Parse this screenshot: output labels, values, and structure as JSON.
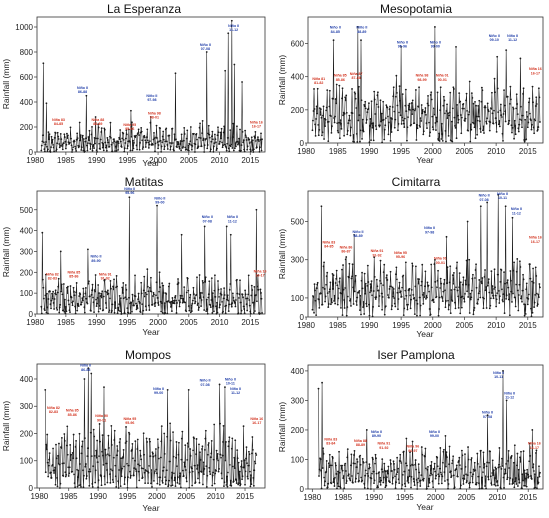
{
  "figure": {
    "background": "#ffffff",
    "line_color": "#1a1a1a",
    "nino_color": "#1f3da8",
    "nina_color": "#d2321e"
  },
  "chart_data": [
    {
      "id": "la-esperanza",
      "type": "line",
      "title": "La Esperanza",
      "xlabel": "Year",
      "ylabel": "Rainfall (mm)",
      "xlim": [
        1980.3,
        2017.4
      ],
      "ylim": [
        0,
        1080
      ],
      "xticks": [
        1980,
        1985,
        1990,
        1995,
        2000,
        2005,
        2010,
        2015
      ],
      "yticks": [
        0,
        200,
        400,
        600,
        800,
        1000
      ],
      "grid": false,
      "legend": "none",
      "base": 75,
      "amp": 145,
      "seed": 11,
      "peaks": [
        {
          "x": 1981.3,
          "y": 710
        },
        {
          "x": 1981.8,
          "y": 390
        },
        {
          "x": 1988.3,
          "y": 450
        },
        {
          "x": 1989.8,
          "y": 280
        },
        {
          "x": 1995.6,
          "y": 330
        },
        {
          "x": 1998.8,
          "y": 280
        },
        {
          "x": 2002.8,
          "y": 630
        },
        {
          "x": 2007.9,
          "y": 800
        },
        {
          "x": 2010.9,
          "y": 650
        },
        {
          "x": 2011.4,
          "y": 950
        },
        {
          "x": 2012.0,
          "y": 1050
        },
        {
          "x": 2012.4,
          "y": 700
        },
        {
          "x": 2013.7,
          "y": 560
        }
      ],
      "annotations": [
        {
          "kind": "nino",
          "x": 1987.7,
          "y": 505,
          "lines": [
            "Niño II",
            "86-88"
          ]
        },
        {
          "kind": "nina",
          "x": 1983.8,
          "y": 250,
          "lines": [
            "Niña 83",
            "84-85"
          ]
        },
        {
          "kind": "nina",
          "x": 1990.2,
          "y": 250,
          "lines": [
            "Niña 88",
            "88-89"
          ]
        },
        {
          "kind": "nina",
          "x": 1995.4,
          "y": 210,
          "lines": [
            "Niña 95",
            "95-96"
          ]
        },
        {
          "kind": "nino",
          "x": 1999.0,
          "y": 440,
          "lines": [
            "Niño II",
            "97-98"
          ]
        },
        {
          "kind": "nina",
          "x": 1999.4,
          "y": 300,
          "lines": [
            "Niña 98",
            "98-01"
          ]
        },
        {
          "kind": "nino",
          "x": 2007.7,
          "y": 850,
          "lines": [
            "Niño II",
            "07-08"
          ]
        },
        {
          "kind": "nino",
          "x": 2012.3,
          "y": 1000,
          "lines": [
            "Niño II",
            "11-12"
          ]
        },
        {
          "kind": "nina",
          "x": 2016.0,
          "y": 230,
          "lines": [
            "Niña 16",
            "16-17"
          ]
        }
      ]
    },
    {
      "id": "mesopotamia",
      "type": "line",
      "title": "Mesopotamia",
      "xlabel": "Year",
      "ylabel": "Rainfall (mm)",
      "xlim": [
        1980.3,
        2017.4
      ],
      "ylim": [
        0,
        760
      ],
      "xticks": [
        1980,
        1985,
        1990,
        1995,
        2000,
        2005,
        2010,
        2015
      ],
      "yticks": [
        0,
        200,
        400,
        600
      ],
      "grid": false,
      "legend": "none",
      "base": 250,
      "amp": 210,
      "seed": 23,
      "peaks": [
        {
          "x": 1984.3,
          "y": 620
        },
        {
          "x": 1988.2,
          "y": 700
        },
        {
          "x": 1988.7,
          "y": 620
        },
        {
          "x": 1995.0,
          "y": 580
        },
        {
          "x": 2000.3,
          "y": 700
        },
        {
          "x": 2003.7,
          "y": 580
        },
        {
          "x": 2010.2,
          "y": 520
        },
        {
          "x": 2011.6,
          "y": 560
        },
        {
          "x": 2013.8,
          "y": 510
        }
      ],
      "annotations": [
        {
          "kind": "nina",
          "x": 1982.0,
          "y": 380,
          "lines": [
            "Niña 81",
            "81-82"
          ]
        },
        {
          "kind": "nino",
          "x": 1984.6,
          "y": 690,
          "lines": [
            "Niño II",
            "84-85"
          ]
        },
        {
          "kind": "nina",
          "x": 1985.4,
          "y": 400,
          "lines": [
            "Niña 85",
            "85-86"
          ]
        },
        {
          "kind": "nino",
          "x": 1988.8,
          "y": 690,
          "lines": [
            "Niño II",
            "88-89"
          ]
        },
        {
          "kind": "nina",
          "x": 1987.9,
          "y": 410,
          "lines": [
            "Niña 87",
            "87-88"
          ]
        },
        {
          "kind": "nino",
          "x": 1995.2,
          "y": 600,
          "lines": [
            "Niño II",
            "95-96"
          ]
        },
        {
          "kind": "nino",
          "x": 2000.4,
          "y": 600,
          "lines": [
            "Niño II",
            "99-00"
          ]
        },
        {
          "kind": "nina",
          "x": 1998.3,
          "y": 400,
          "lines": [
            "Niña 98",
            "98-99"
          ]
        },
        {
          "kind": "nina",
          "x": 2001.5,
          "y": 400,
          "lines": [
            "Niña 01",
            "00-01"
          ]
        },
        {
          "kind": "nino",
          "x": 2009.7,
          "y": 640,
          "lines": [
            "Niño II",
            "09-10"
          ]
        },
        {
          "kind": "nino",
          "x": 2012.6,
          "y": 640,
          "lines": [
            "Niño II",
            "11-12"
          ]
        },
        {
          "kind": "nina",
          "x": 2016.2,
          "y": 440,
          "lines": [
            "Niña 16",
            "16-17"
          ]
        }
      ]
    },
    {
      "id": "matitas",
      "type": "line",
      "title": "Matitas",
      "xlabel": "Year",
      "ylabel": "Rainfall (mm)",
      "xlim": [
        1980.3,
        2017.4
      ],
      "ylim": [
        0,
        590
      ],
      "xticks": [
        1980,
        1985,
        1990,
        1995,
        2000,
        2005,
        2010,
        2015
      ],
      "yticks": [
        0,
        100,
        200,
        300,
        400,
        500
      ],
      "grid": false,
      "legend": "none",
      "base": 70,
      "amp": 125,
      "seed": 37,
      "peaks": [
        {
          "x": 1981.2,
          "y": 390
        },
        {
          "x": 1984.2,
          "y": 300
        },
        {
          "x": 1988.6,
          "y": 310
        },
        {
          "x": 1995.3,
          "y": 560
        },
        {
          "x": 1999.8,
          "y": 520
        },
        {
          "x": 2003.8,
          "y": 380
        },
        {
          "x": 2007.6,
          "y": 420
        },
        {
          "x": 2011.2,
          "y": 420
        },
        {
          "x": 2011.8,
          "y": 380
        },
        {
          "x": 2016.0,
          "y": 500
        }
      ],
      "annotations": [
        {
          "kind": "nina",
          "x": 1982.8,
          "y": 185,
          "lines": [
            "Niña 82",
            "82-83"
          ]
        },
        {
          "kind": "nina",
          "x": 1986.3,
          "y": 195,
          "lines": [
            "Niña 85",
            "85-86"
          ]
        },
        {
          "kind": "nino",
          "x": 1989.9,
          "y": 270,
          "lines": [
            "Niño II",
            "89-90"
          ]
        },
        {
          "kind": "nina",
          "x": 1991.4,
          "y": 185,
          "lines": [
            "Niña 91",
            "91-92"
          ]
        },
        {
          "kind": "nino",
          "x": 1995.4,
          "y": 595,
          "lines": [
            "Niño II",
            "95-96"
          ]
        },
        {
          "kind": "nino",
          "x": 2000.3,
          "y": 550,
          "lines": [
            "Niño II",
            "99-00"
          ]
        },
        {
          "kind": "nino",
          "x": 2008.0,
          "y": 460,
          "lines": [
            "Niño II",
            "07-08"
          ]
        },
        {
          "kind": "nino",
          "x": 2012.1,
          "y": 460,
          "lines": [
            "Niño II",
            "11-12"
          ]
        },
        {
          "kind": "nina",
          "x": 2016.6,
          "y": 200,
          "lines": [
            "Niña 16",
            "16-17"
          ]
        }
      ]
    },
    {
      "id": "cimitarra",
      "type": "line",
      "title": "Cimitarra",
      "xlabel": "Year",
      "ylabel": "Rainfall (mm)",
      "xlim": [
        1980.3,
        2017.4
      ],
      "ylim": [
        0,
        660
      ],
      "xticks": [
        1980,
        1985,
        1990,
        1995,
        2000,
        2005,
        2010,
        2015
      ],
      "yticks": [
        0,
        100,
        300,
        500
      ],
      "grid": false,
      "legend": "none",
      "base": 200,
      "amp": 170,
      "seed": 53,
      "peaks": [
        {
          "x": 1982.4,
          "y": 580
        },
        {
          "x": 1987.6,
          "y": 430
        },
        {
          "x": 2002.2,
          "y": 420
        },
        {
          "x": 2005.5,
          "y": 500
        },
        {
          "x": 2007.6,
          "y": 580
        },
        {
          "x": 2008.6,
          "y": 600
        },
        {
          "x": 2010.3,
          "y": 640
        },
        {
          "x": 2011.5,
          "y": 580
        },
        {
          "x": 2012.6,
          "y": 520
        }
      ],
      "annotations": [
        {
          "kind": "nina",
          "x": 1983.6,
          "y": 385,
          "lines": [
            "Niña 83",
            "84-85"
          ]
        },
        {
          "kind": "nino",
          "x": 1988.2,
          "y": 440,
          "lines": [
            "Niño II",
            "88-89"
          ]
        },
        {
          "kind": "nina",
          "x": 1986.3,
          "y": 360,
          "lines": [
            "Niña 86",
            "86-87"
          ]
        },
        {
          "kind": "nina",
          "x": 1991.2,
          "y": 340,
          "lines": [
            "Niña 91",
            "91-92"
          ]
        },
        {
          "kind": "nina",
          "x": 1994.9,
          "y": 330,
          "lines": [
            "Niña 95",
            "95-96"
          ]
        },
        {
          "kind": "nino",
          "x": 1999.5,
          "y": 460,
          "lines": [
            "Niño II",
            "97-98"
          ]
        },
        {
          "kind": "nina",
          "x": 2001.2,
          "y": 300,
          "lines": [
            "Niña 01",
            "00-01"
          ]
        },
        {
          "kind": "nino",
          "x": 2008.1,
          "y": 630,
          "lines": [
            "Niño II",
            "07-08"
          ]
        },
        {
          "kind": "nino",
          "x": 2011.0,
          "y": 640,
          "lines": [
            "Niño II",
            "10-11"
          ]
        },
        {
          "kind": "nino",
          "x": 2013.2,
          "y": 560,
          "lines": [
            "Niño II",
            "11-12"
          ]
        },
        {
          "kind": "nina",
          "x": 2016.2,
          "y": 410,
          "lines": [
            "Niña 16",
            "16-17"
          ]
        }
      ]
    },
    {
      "id": "mompos",
      "type": "line",
      "title": "Mompos",
      "xlabel": "Year",
      "ylabel": "Rainfall (mm)",
      "xlim": [
        1979.6,
        2018.4
      ],
      "ylim": [
        0,
        455
      ],
      "xticks": [
        1980,
        1985,
        1990,
        1995,
        2000,
        2005,
        2010,
        2015
      ],
      "yticks": [
        0,
        100,
        200,
        300,
        400
      ],
      "grid": false,
      "legend": "none",
      "base": 90,
      "amp": 140,
      "seed": 71,
      "peaks": [
        {
          "x": 1981.0,
          "y": 360
        },
        {
          "x": 1987.7,
          "y": 400
        },
        {
          "x": 1988.3,
          "y": 440
        },
        {
          "x": 1988.8,
          "y": 420
        },
        {
          "x": 1991.0,
          "y": 370
        },
        {
          "x": 2001.8,
          "y": 360
        },
        {
          "x": 2005.4,
          "y": 360
        },
        {
          "x": 2010.7,
          "y": 380
        },
        {
          "x": 2011.6,
          "y": 370
        }
      ],
      "annotations": [
        {
          "kind": "nina",
          "x": 1982.4,
          "y": 290,
          "lines": [
            "Niña 82",
            "82-83"
          ]
        },
        {
          "kind": "nina",
          "x": 1985.6,
          "y": 280,
          "lines": [
            "Niña 85",
            "85-86"
          ]
        },
        {
          "kind": "nino",
          "x": 1987.9,
          "y": 445,
          "lines": [
            "Niño II",
            "86-88"
          ]
        },
        {
          "kind": "nina",
          "x": 1990.6,
          "y": 260,
          "lines": [
            "Niña 90",
            "90-91"
          ]
        },
        {
          "kind": "nina",
          "x": 1995.4,
          "y": 250,
          "lines": [
            "Niña 95",
            "95-96"
          ]
        },
        {
          "kind": "nino",
          "x": 2000.3,
          "y": 360,
          "lines": [
            "Niño II",
            "99-00"
          ]
        },
        {
          "kind": "nino",
          "x": 2008.2,
          "y": 390,
          "lines": [
            "Niño II",
            "07-08"
          ]
        },
        {
          "kind": "nino",
          "x": 2012.5,
          "y": 395,
          "lines": [
            "Niño II",
            "10-11"
          ]
        },
        {
          "kind": "nino",
          "x": 2013.4,
          "y": 360,
          "lines": [
            "Niño II",
            "11-12"
          ]
        },
        {
          "kind": "nina",
          "x": 2017.0,
          "y": 250,
          "lines": [
            "Niña 16",
            "16-17"
          ]
        }
      ]
    },
    {
      "id": "iser-pamplona",
      "type": "line",
      "title": "Iser Pamplona",
      "xlabel": "Year",
      "ylabel": "Rainfall (mm)",
      "xlim": [
        1979.3,
        2017.4
      ],
      "ylim": [
        0,
        420
      ],
      "xticks": [
        1980,
        1985,
        1990,
        1995,
        2000,
        2005,
        2010,
        2015
      ],
      "yticks": [
        0,
        100,
        200,
        300,
        400
      ],
      "grid": false,
      "legend": "none",
      "base": 50,
      "amp": 95,
      "seed": 89,
      "peaks": [
        {
          "x": 1981.0,
          "y": 340
        },
        {
          "x": 1981.6,
          "y": 360
        },
        {
          "x": 1988.8,
          "y": 200
        },
        {
          "x": 2001.6,
          "y": 180
        },
        {
          "x": 2008.4,
          "y": 250
        },
        {
          "x": 2010.9,
          "y": 400
        },
        {
          "x": 2011.5,
          "y": 300
        },
        {
          "x": 2015.7,
          "y": 200
        }
      ],
      "annotations": [
        {
          "kind": "nina",
          "x": 1983.0,
          "y": 165,
          "lines": [
            "Niña 83",
            "83-84"
          ]
        },
        {
          "kind": "nina",
          "x": 1987.8,
          "y": 160,
          "lines": [
            "Niña 88",
            "88-89"
          ]
        },
        {
          "kind": "nino",
          "x": 1990.4,
          "y": 190,
          "lines": [
            "Niño II",
            "89-90"
          ]
        },
        {
          "kind": "nina",
          "x": 1991.6,
          "y": 150,
          "lines": [
            "Niña 91",
            "91-92"
          ]
        },
        {
          "kind": "nina",
          "x": 1996.3,
          "y": 140,
          "lines": [
            "Niña 96",
            "96-97"
          ]
        },
        {
          "kind": "nino",
          "x": 1999.8,
          "y": 190,
          "lines": [
            "Niño II",
            "99-00"
          ]
        },
        {
          "kind": "nino",
          "x": 2008.4,
          "y": 255,
          "lines": [
            "Niño II",
            "07-08"
          ]
        },
        {
          "kind": "nino",
          "x": 2010.2,
          "y": 390,
          "lines": [
            "Niño II",
            "10-11"
          ]
        },
        {
          "kind": "nino",
          "x": 2012.0,
          "y": 320,
          "lines": [
            "Niño II",
            "11-12"
          ]
        },
        {
          "kind": "nina",
          "x": 2016.0,
          "y": 150,
          "lines": [
            "Niña 16",
            "16-17"
          ]
        }
      ]
    }
  ]
}
